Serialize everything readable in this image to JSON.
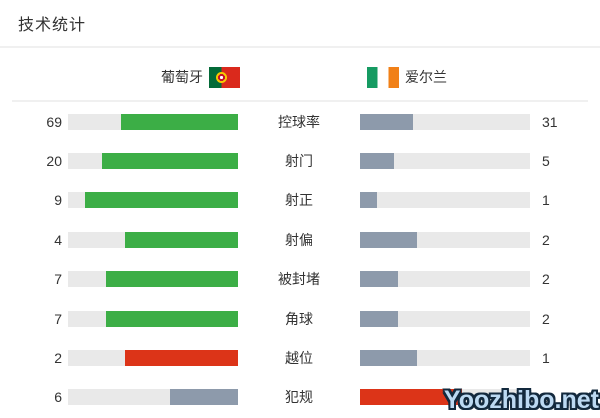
{
  "title": "技术统计",
  "teams": {
    "home": {
      "name": "葡萄牙",
      "flag_icon": "portugal-flag"
    },
    "away": {
      "name": "爱尔兰",
      "flag_icon": "ireland-flag"
    }
  },
  "colors": {
    "positive_lead": "#3cae46",
    "negative_lead": "#dc3418",
    "trail": "#8d9aab",
    "track": "#e9e9e9",
    "text": "#333333"
  },
  "chart_data": {
    "type": "bar",
    "title": "技术统计",
    "categories": [
      "控球率",
      "射门",
      "射正",
      "射偏",
      "被封堵",
      "角球",
      "越位",
      "犯规"
    ],
    "series": [
      {
        "name": "葡萄牙",
        "values": [
          69,
          20,
          9,
          4,
          7,
          7,
          2,
          6
        ]
      },
      {
        "name": "爱尔兰",
        "values": [
          31,
          5,
          1,
          2,
          2,
          2,
          1,
          9
        ]
      }
    ],
    "layout": "mirrored horizontal bars; home values left-aligned column, away values right column, category labels centered; bar fill proportion = value / (home + away)",
    "grid": false,
    "legend_position": "top (team names with flags)"
  },
  "rows": [
    {
      "label": "控球率",
      "home": 69,
      "away": 31,
      "home_color": "#3cae46",
      "away_color": "#8d9aab"
    },
    {
      "label": "射门",
      "home": 20,
      "away": 5,
      "home_color": "#3cae46",
      "away_color": "#8d9aab"
    },
    {
      "label": "射正",
      "home": 9,
      "away": 1,
      "home_color": "#3cae46",
      "away_color": "#8d9aab"
    },
    {
      "label": "射偏",
      "home": 4,
      "away": 2,
      "home_color": "#3cae46",
      "away_color": "#8d9aab"
    },
    {
      "label": "被封堵",
      "home": 7,
      "away": 2,
      "home_color": "#3cae46",
      "away_color": "#8d9aab"
    },
    {
      "label": "角球",
      "home": 7,
      "away": 2,
      "home_color": "#3cae46",
      "away_color": "#8d9aab"
    },
    {
      "label": "越位",
      "home": 2,
      "away": 1,
      "home_color": "#dc3418",
      "away_color": "#8d9aab"
    },
    {
      "label": "犯规",
      "home": 6,
      "away": 9,
      "home_color": "#8d9aab",
      "away_color": "#dc3418"
    }
  ],
  "watermark": "Yoozhibo.net"
}
